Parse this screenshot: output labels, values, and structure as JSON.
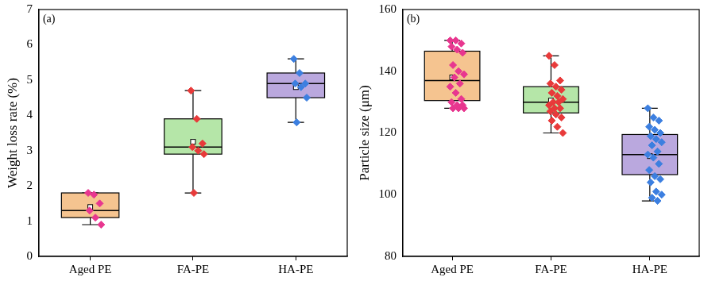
{
  "chart_data": [
    {
      "type": "box",
      "annotation": "(a)",
      "y_label": "Weight loss rate (%)",
      "categories": [
        "Aged PE",
        "FA-PE",
        "HA-PE"
      ],
      "colors": [
        "#f5c490",
        "#b5e6a8",
        "#baa8de"
      ],
      "point_colors": [
        "#e8368f",
        "#e83a3a",
        "#3c7fe0"
      ],
      "marker": "diamond",
      "values": [
        [
          1.8,
          1.75,
          1.5,
          1.3,
          1.1,
          0.9
        ],
        [
          4.7,
          3.9,
          3.2,
          3.1,
          3.0,
          2.9,
          1.8
        ],
        [
          5.6,
          5.2,
          4.9,
          4.9,
          4.8,
          4.5,
          3.8
        ]
      ],
      "q1": [
        1.1,
        2.9,
        4.5
      ],
      "median": [
        1.3,
        3.1,
        4.9
      ],
      "q3": [
        1.8,
        3.9,
        5.2
      ],
      "whisker_low": [
        0.9,
        1.8,
        3.8
      ],
      "whisker_high": [
        1.8,
        4.7,
        5.6
      ],
      "mean": [
        1.4,
        3.25,
        4.8
      ],
      "ylim": [
        0,
        7
      ],
      "yticks": [
        0,
        1,
        2,
        3,
        4,
        5,
        6,
        7
      ],
      "grid": false
    },
    {
      "type": "box",
      "annotation": "(b)",
      "y_label": "Particle size (μm)",
      "categories": [
        "Aged PE",
        "FA-PE",
        "HA-PE"
      ],
      "colors": [
        "#f5c490",
        "#b5e6a8",
        "#baa8de"
      ],
      "point_colors": [
        "#e8368f",
        "#e83a3a",
        "#3c7fe0"
      ],
      "marker": "diamond",
      "values": [
        [
          150,
          150,
          149,
          148,
          147,
          146,
          142,
          140,
          139,
          138,
          136,
          135,
          133,
          131,
          130,
          129,
          129,
          128,
          128,
          128
        ],
        [
          145,
          142,
          137,
          136,
          135,
          134,
          133,
          132,
          131,
          130,
          130,
          129,
          128,
          128,
          127,
          126,
          125,
          124,
          122,
          120
        ],
        [
          128,
          125,
          124,
          122,
          121,
          120,
          119,
          118,
          117,
          116,
          114,
          113,
          112,
          110,
          108,
          106,
          105,
          104,
          101,
          100,
          99,
          98
        ]
      ],
      "q1": [
        130.5,
        126.5,
        106.5
      ],
      "median": [
        137,
        130,
        113
      ],
      "q3": [
        146.5,
        135,
        119.5
      ],
      "whisker_low": [
        128,
        120,
        98
      ],
      "whisker_high": [
        150,
        145,
        128
      ],
      "mean": [
        138,
        130.5,
        112.5
      ],
      "ylim": [
        80,
        160
      ],
      "yticks": [
        80,
        100,
        120,
        140,
        160
      ],
      "grid": false
    }
  ]
}
